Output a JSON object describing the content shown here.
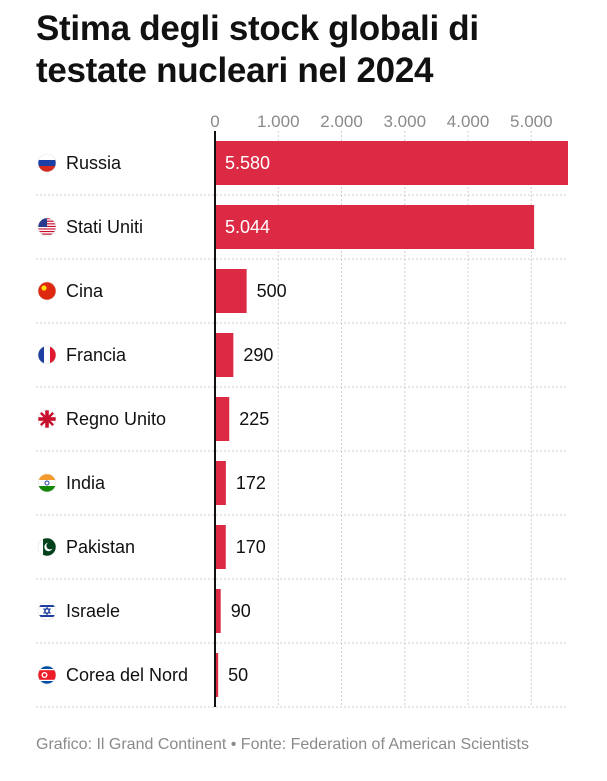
{
  "title": "Stima degli stock globali di testate nucleari nel 2024",
  "footer": "Grafico: Il Grand Continent • Fonte: Federation of American Scientists",
  "colors": {
    "bar": "#dc2a45",
    "text": "#111111",
    "muted": "#8a8a8a"
  },
  "chart_data": {
    "type": "bar",
    "orientation": "horizontal",
    "title": "Stima degli stock globali di testate nucleari nel 2024",
    "xlim": [
      0,
      5580
    ],
    "x_ticks": [
      0,
      1000,
      2000,
      3000,
      4000,
      5000
    ],
    "x_tick_labels": [
      "0",
      "1.000",
      "2.000",
      "3.000",
      "4.000",
      "5.000"
    ],
    "categories": [
      "Russia",
      "Stati Uniti",
      "Cina",
      "Francia",
      "Regno Unito",
      "India",
      "Pakistan",
      "Israele",
      "Corea del Nord"
    ],
    "values": [
      5580,
      5044,
      500,
      290,
      225,
      172,
      170,
      90,
      50
    ],
    "value_labels": [
      "5.580",
      "5.044",
      "500",
      "290",
      "225",
      "172",
      "170",
      "90",
      "50"
    ],
    "flag_icons": [
      "russia-flag-icon",
      "usa-flag-icon",
      "china-flag-icon",
      "france-flag-icon",
      "uk-flag-icon",
      "india-flag-icon",
      "pakistan-flag-icon",
      "israel-flag-icon",
      "north-korea-flag-icon"
    ],
    "grid": true
  }
}
